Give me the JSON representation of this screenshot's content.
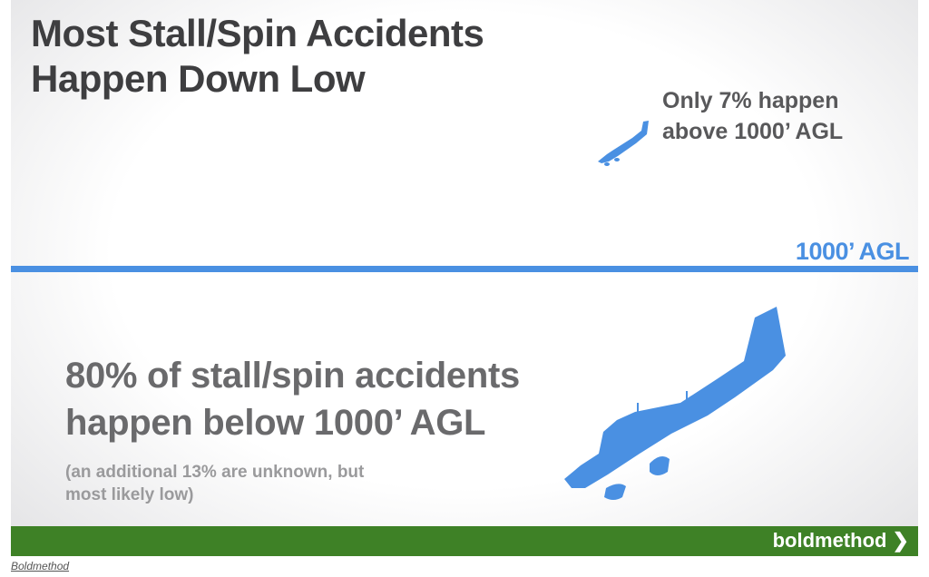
{
  "title": [
    "Most Stall/Spin Accidents",
    "Happen Down Low"
  ],
  "above": [
    "Only 7% happen",
    "above 1000’ AGL"
  ],
  "agl_label": "1000’ AGL",
  "below": [
    "80% of stall/spin accidents",
    "happen below 1000’ AGL"
  ],
  "below_note": [
    "(an additional 13% are unknown, but",
    "most likely low)"
  ],
  "brand": "boldmethod ❯",
  "credit": "Boldmethod",
  "colors": {
    "accent_blue": "#4a90e2",
    "footer_green": "#3e8126",
    "title_gray": "#3e3e40"
  },
  "icons": [
    "small-airplane-icon",
    "large-airplane-icon"
  ]
}
